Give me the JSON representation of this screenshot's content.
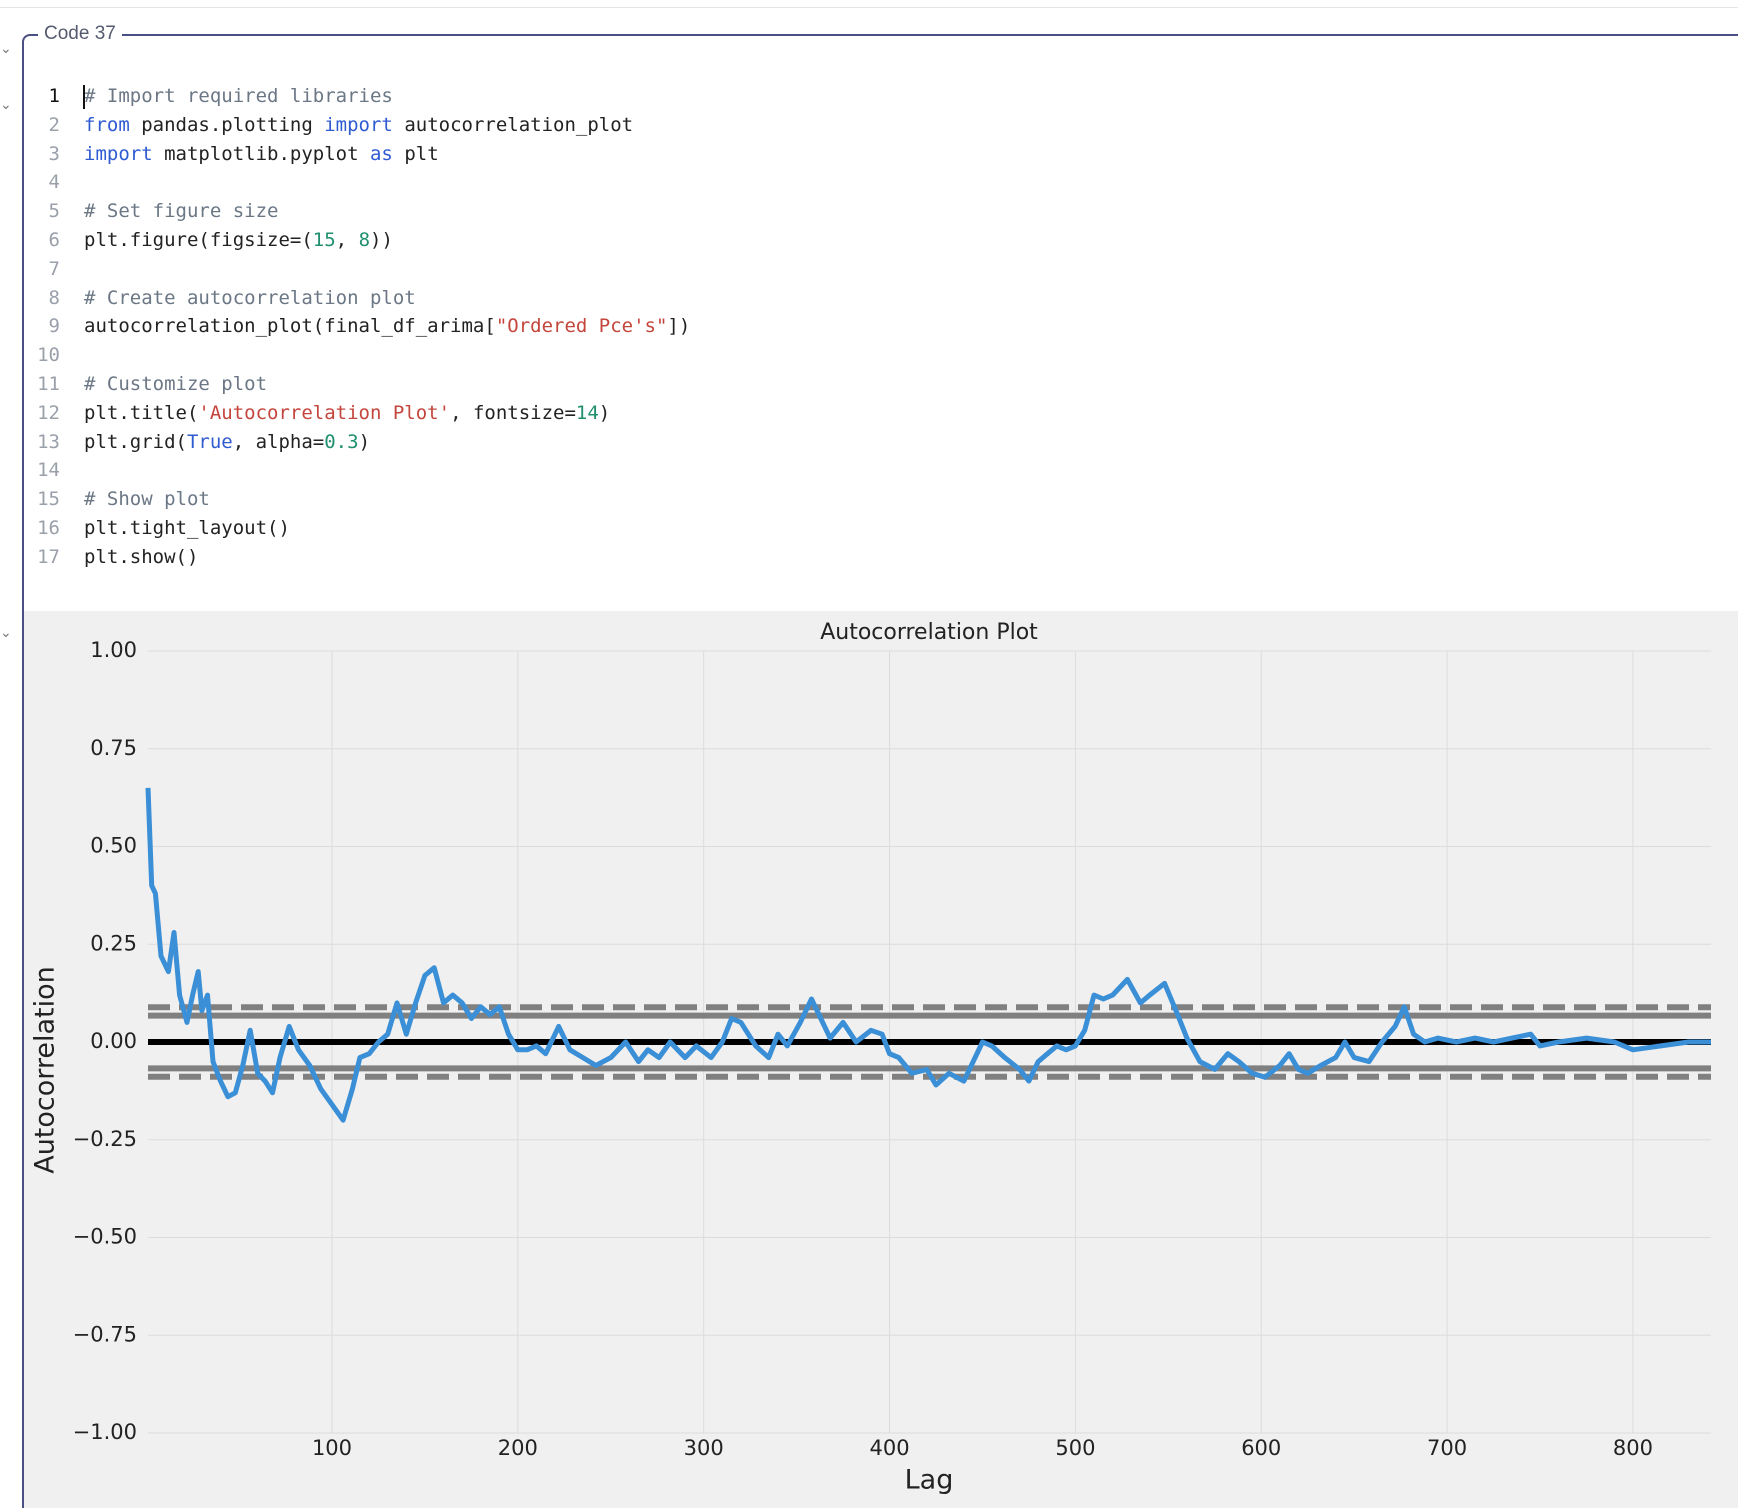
{
  "cell": {
    "label": "Code 37",
    "lines": [
      {
        "number": "1",
        "tokens": [
          [
            "# Import required libraries",
            "#6b7785"
          ]
        ]
      },
      {
        "number": "2",
        "tokens": [
          [
            "from",
            "#2f5bd2"
          ],
          [
            " pandas.plotting ",
            "#222222"
          ],
          [
            "import",
            "#2f5bd2"
          ],
          [
            " autocorrelation_plot",
            "#222222"
          ]
        ]
      },
      {
        "number": "3",
        "tokens": [
          [
            "import",
            "#2f5bd2"
          ],
          [
            " matplotlib.pyplot ",
            "#222222"
          ],
          [
            "as",
            "#2f5bd2"
          ],
          [
            " plt",
            "#222222"
          ]
        ]
      },
      {
        "number": "4",
        "tokens": []
      },
      {
        "number": "5",
        "tokens": [
          [
            "# Set figure size",
            "#6b7785"
          ]
        ]
      },
      {
        "number": "6",
        "tokens": [
          [
            "plt.figure(figsize=(",
            "#222222"
          ],
          [
            "15",
            "#1f8f6e"
          ],
          [
            ", ",
            "#222222"
          ],
          [
            "8",
            "#1f8f6e"
          ],
          [
            "))",
            "#222222"
          ]
        ]
      },
      {
        "number": "7",
        "tokens": []
      },
      {
        "number": "8",
        "tokens": [
          [
            "# Create autocorrelation plot",
            "#6b7785"
          ]
        ]
      },
      {
        "number": "9",
        "tokens": [
          [
            "autocorrelation_plot(final_df_arima[",
            "#222222"
          ],
          [
            "\"Ordered Pce's\"",
            "#c4453c"
          ],
          [
            "])",
            "#222222"
          ]
        ]
      },
      {
        "number": "10",
        "tokens": []
      },
      {
        "number": "11",
        "tokens": [
          [
            "# Customize plot",
            "#6b7785"
          ]
        ]
      },
      {
        "number": "12",
        "tokens": [
          [
            "plt.title(",
            "#222222"
          ],
          [
            "'Autocorrelation Plot'",
            "#c4453c"
          ],
          [
            ", fontsize=",
            "#222222"
          ],
          [
            "14",
            "#1f8f6e"
          ],
          [
            ")",
            "#222222"
          ]
        ]
      },
      {
        "number": "13",
        "tokens": [
          [
            "plt.grid(",
            "#222222"
          ],
          [
            "True",
            "#2f5bd2"
          ],
          [
            ", alpha=",
            "#222222"
          ],
          [
            "0.3",
            "#1f8f6e"
          ],
          [
            ")",
            "#222222"
          ]
        ]
      },
      {
        "number": "14",
        "tokens": []
      },
      {
        "number": "15",
        "tokens": [
          [
            "# Show plot",
            "#6b7785"
          ]
        ]
      },
      {
        "number": "16",
        "tokens": [
          [
            "plt.tight_layout()",
            "#222222"
          ]
        ]
      },
      {
        "number": "17",
        "tokens": [
          [
            "plt.show()",
            "#222222"
          ]
        ]
      }
    ]
  },
  "chart_data": {
    "type": "line",
    "title": "Autocorrelation Plot",
    "x_label": "Lag",
    "y_label": "Autocorrelation",
    "xlim": [
      1,
      842
    ],
    "ylim": [
      -1,
      1
    ],
    "grid": true,
    "xticks": [
      100,
      200,
      300,
      400,
      500,
      600,
      700,
      800
    ],
    "yticks": [
      {
        "value": -1,
        "label": "−1.00"
      },
      {
        "value": -0.75,
        "label": "−0.75"
      },
      {
        "value": -0.5,
        "label": "−0.50"
      },
      {
        "value": -0.25,
        "label": "−0.25"
      },
      {
        "value": 0,
        "label": "0.00"
      },
      {
        "value": 0.25,
        "label": "0.25"
      },
      {
        "value": 0.5,
        "label": "0.50"
      },
      {
        "value": 0.75,
        "label": "0.75"
      },
      {
        "value": 1,
        "label": "1.00"
      }
    ],
    "reference_lines": [
      {
        "value": 0.0888,
        "color": "#808080",
        "dashed": true
      },
      {
        "value": 0.0675,
        "color": "#808080",
        "dashed": false
      },
      {
        "value": 0,
        "color": "#000000",
        "dashed": false
      },
      {
        "value": -0.0675,
        "color": "#808080",
        "dashed": false
      },
      {
        "value": -0.0888,
        "color": "#808080",
        "dashed": true
      }
    ],
    "x": [
      1,
      3,
      5,
      8,
      12,
      15,
      18,
      22,
      25,
      28,
      30,
      33,
      36,
      40,
      44,
      48,
      52,
      56,
      60,
      64,
      68,
      72,
      77,
      82,
      88,
      94,
      100,
      106,
      111,
      115,
      120,
      125,
      130,
      135,
      140,
      145,
      150,
      155,
      160,
      165,
      170,
      175,
      180,
      185,
      190,
      195,
      200,
      205,
      210,
      215,
      222,
      228,
      235,
      242,
      250,
      258,
      265,
      270,
      276,
      282,
      290,
      296,
      304,
      310,
      315,
      320,
      328,
      335,
      340,
      345,
      352,
      358,
      363,
      368,
      375,
      382,
      390,
      396,
      400,
      405,
      412,
      420,
      425,
      432,
      440,
      445,
      450,
      455,
      462,
      470,
      475,
      480,
      485,
      490,
      495,
      500,
      505,
      510,
      515,
      520,
      528,
      535,
      540,
      548,
      555,
      560,
      567,
      575,
      582,
      588,
      595,
      602,
      610,
      615,
      620,
      625,
      632,
      640,
      645,
      650,
      658,
      665,
      672,
      677,
      682,
      688,
      695,
      705,
      715,
      725,
      735,
      745,
      750,
      760,
      775,
      790,
      800,
      815,
      830,
      842
    ],
    "series": [
      {
        "color": "#3a8fd6",
        "values": [
          0.65,
          0.4,
          0.38,
          0.22,
          0.18,
          0.28,
          0.12,
          0.05,
          0.12,
          0.18,
          0.08,
          0.12,
          -0.05,
          -0.1,
          -0.14,
          -0.13,
          -0.06,
          0.03,
          -0.08,
          -0.1,
          -0.13,
          -0.04,
          0.04,
          -0.02,
          -0.06,
          -0.12,
          -0.16,
          -0.2,
          -0.12,
          -0.04,
          -0.03,
          0.0,
          0.02,
          0.1,
          0.02,
          0.1,
          0.17,
          0.19,
          0.1,
          0.12,
          0.1,
          0.06,
          0.09,
          0.07,
          0.09,
          0.02,
          -0.02,
          -0.02,
          -0.01,
          -0.03,
          0.04,
          -0.02,
          -0.04,
          -0.06,
          -0.04,
          0.0,
          -0.05,
          -0.02,
          -0.04,
          0.0,
          -0.04,
          -0.01,
          -0.04,
          0.0,
          0.06,
          0.05,
          -0.01,
          -0.04,
          0.02,
          -0.01,
          0.05,
          0.11,
          0.06,
          0.01,
          0.05,
          0.0,
          0.03,
          0.02,
          -0.03,
          -0.04,
          -0.08,
          -0.07,
          -0.11,
          -0.08,
          -0.1,
          -0.05,
          0.0,
          -0.01,
          -0.04,
          -0.07,
          -0.1,
          -0.05,
          -0.03,
          -0.01,
          -0.02,
          -0.01,
          0.03,
          0.12,
          0.11,
          0.12,
          0.16,
          0.1,
          0.12,
          0.15,
          0.07,
          0.01,
          -0.05,
          -0.07,
          -0.03,
          -0.05,
          -0.08,
          -0.09,
          -0.06,
          -0.03,
          -0.07,
          -0.08,
          -0.06,
          -0.04,
          0.0,
          -0.04,
          -0.05,
          0.0,
          0.04,
          0.09,
          0.02,
          0.0,
          0.01,
          0.0,
          0.01,
          0.0,
          0.01,
          0.02,
          -0.01,
          0.0,
          0.01,
          0.0,
          -0.02,
          -0.01,
          0.0,
          0.0
        ]
      }
    ]
  }
}
